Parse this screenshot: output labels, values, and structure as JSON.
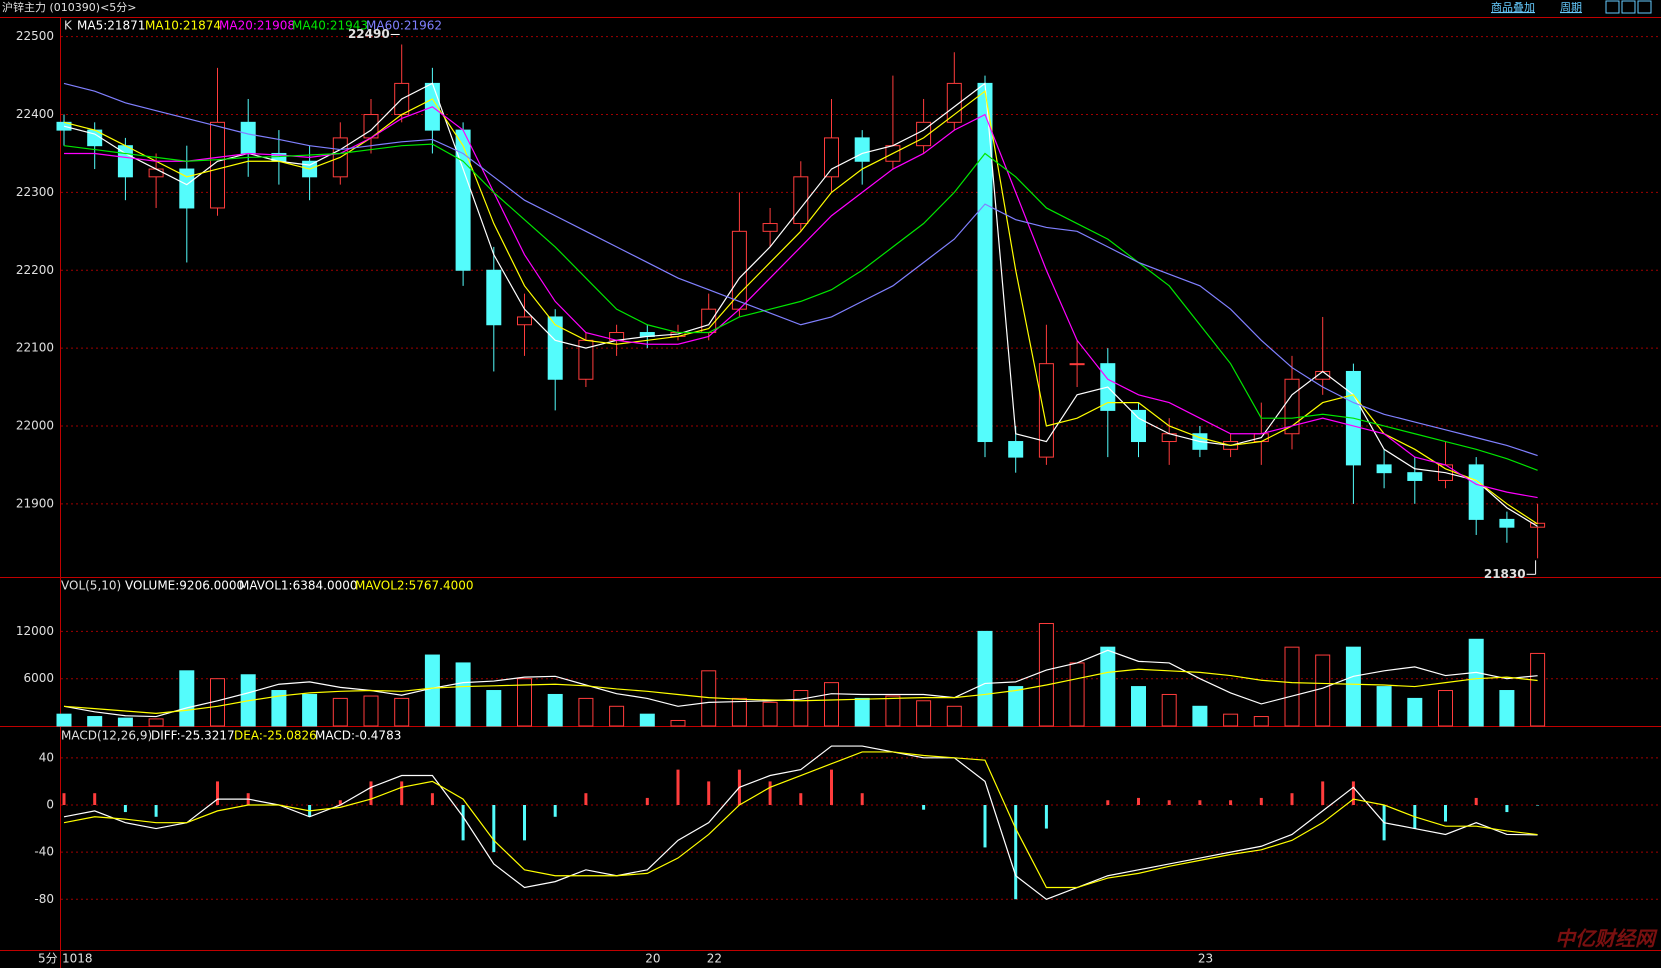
{
  "toolbar": {
    "title": "沪锌主力 (010390)<5分>",
    "buttons": [
      "商品叠加",
      "周期"
    ]
  },
  "period": "5分",
  "watermark": "中亿财经网",
  "chart_data": [
    {
      "type": "candlestick",
      "header": "K",
      "categories": [
        "1018",
        null,
        null,
        null,
        null,
        null,
        null,
        null,
        null,
        null,
        null,
        null,
        null,
        null,
        null,
        null,
        null,
        null,
        null,
        "20",
        null,
        "22",
        null,
        null,
        null,
        null,
        null,
        null,
        null,
        null,
        null,
        null,
        null,
        null,
        null,
        null,
        null,
        "23",
        null,
        null,
        null,
        null,
        null,
        null,
        null,
        null,
        null,
        null,
        null
      ],
      "open": [
        22390,
        22380,
        22360,
        22320,
        22330,
        22280,
        22390,
        22350,
        22340,
        22320,
        22370,
        22400,
        22440,
        22380,
        22200,
        22130,
        22140,
        22060,
        22110,
        22120,
        22115,
        22120,
        22150,
        22250,
        22260,
        22320,
        22370,
        22340,
        22360,
        22390,
        22440,
        21980,
        21960,
        22080,
        22080,
        22020,
        21980,
        21990,
        21970,
        21980,
        21990,
        22060,
        22070,
        21950,
        21940,
        21930,
        21950,
        21880,
        21870
      ],
      "high": [
        22400,
        22390,
        22370,
        22350,
        22360,
        22460,
        22420,
        22380,
        22360,
        22390,
        22420,
        22490,
        22460,
        22390,
        22230,
        22170,
        22150,
        22120,
        22130,
        22130,
        22130,
        22170,
        22300,
        22280,
        22340,
        22420,
        22380,
        22450,
        22420,
        22480,
        22450,
        22000,
        22130,
        22110,
        22100,
        22030,
        22010,
        22000,
        21990,
        22030,
        22090,
        22140,
        22080,
        21970,
        21960,
        21980,
        21960,
        21890,
        21900
      ],
      "low": [
        22360,
        22330,
        22290,
        22280,
        22210,
        22270,
        22320,
        22310,
        22290,
        22310,
        22350,
        22390,
        22350,
        22180,
        22070,
        22090,
        22020,
        22050,
        22090,
        22100,
        22110,
        22110,
        22140,
        22230,
        22250,
        22300,
        22310,
        22330,
        22350,
        22380,
        21960,
        21940,
        21950,
        22050,
        21960,
        21960,
        21950,
        21960,
        21960,
        21950,
        21970,
        22040,
        21900,
        21920,
        21900,
        21920,
        21860,
        21850,
        21830
      ],
      "close": [
        22380,
        22360,
        22320,
        22330,
        22280,
        22390,
        22350,
        22340,
        22320,
        22370,
        22400,
        22440,
        22380,
        22200,
        22130,
        22140,
        22060,
        22110,
        22120,
        22115,
        22120,
        22150,
        22250,
        22260,
        22320,
        22370,
        22340,
        22360,
        22390,
        22440,
        21980,
        21960,
        22080,
        22080,
        22020,
        21980,
        21990,
        21970,
        21980,
        21990,
        22060,
        22070,
        21950,
        21940,
        21930,
        21950,
        21880,
        21870,
        21875
      ],
      "up_color": "#ff3c3c",
      "down_color": "#54fcfc",
      "ylim": [
        21806,
        22524
      ],
      "yticks": [
        21900,
        22000,
        22100,
        22200,
        22300,
        22400,
        22500
      ],
      "grid": true,
      "series": [
        {
          "name": "MA5:21871",
          "color": "#ffffff",
          "values": [
            22385,
            22375,
            22350,
            22330,
            22310,
            22340,
            22350,
            22340,
            22335,
            22355,
            22380,
            22420,
            22440,
            22330,
            22220,
            22150,
            22110,
            22100,
            22110,
            22115,
            22118,
            22130,
            22190,
            22230,
            22280,
            22330,
            22350,
            22360,
            22380,
            22410,
            22440,
            21990,
            21980,
            22040,
            22050,
            22010,
            21990,
            21980,
            21975,
            21985,
            22040,
            22070,
            22040,
            21970,
            21945,
            21940,
            21930,
            21895,
            21871
          ]
        },
        {
          "name": "MA10:21874",
          "color": "#ffff00",
          "values": [
            22390,
            22380,
            22360,
            22340,
            22320,
            22330,
            22340,
            22340,
            22330,
            22345,
            22370,
            22400,
            22420,
            22360,
            22260,
            22180,
            22130,
            22110,
            22105,
            22110,
            22115,
            22125,
            22170,
            22210,
            22250,
            22300,
            22330,
            22350,
            22370,
            22400,
            22430,
            22200,
            22000,
            22010,
            22030,
            22030,
            22000,
            21985,
            21975,
            21980,
            22000,
            22030,
            22040,
            21990,
            21970,
            21945,
            21930,
            21900,
            21874
          ]
        },
        {
          "name": "MA20:21908",
          "color": "#ff00ff",
          "values": [
            22350,
            22350,
            22345,
            22340,
            22340,
            22345,
            22350,
            22348,
            22345,
            22350,
            22370,
            22395,
            22410,
            22380,
            22300,
            22220,
            22160,
            22120,
            22110,
            22105,
            22105,
            22115,
            22150,
            22190,
            22230,
            22270,
            22300,
            22330,
            22350,
            22380,
            22400,
            22300,
            22200,
            22110,
            22060,
            22040,
            22030,
            22010,
            21990,
            21990,
            22000,
            22010,
            22000,
            21990,
            21960,
            21950,
            21925,
            21915,
            21908
          ]
        },
        {
          "name": "MA40:21943",
          "color": "#00e600",
          "values": [
            22360,
            22355,
            22350,
            22345,
            22340,
            22342,
            22345,
            22346,
            22348,
            22350,
            22355,
            22360,
            22362,
            22340,
            22300,
            22265,
            22230,
            22190,
            22150,
            22130,
            22120,
            22120,
            22140,
            22150,
            22160,
            22175,
            22200,
            22230,
            22260,
            22300,
            22350,
            22320,
            22280,
            22260,
            22240,
            22210,
            22180,
            22130,
            22080,
            22010,
            22010,
            22015,
            22010,
            22000,
            21990,
            21980,
            21970,
            21958,
            21943
          ]
        },
        {
          "name": "MA60:21962",
          "color": "#8080ff",
          "values": [
            22440,
            22430,
            22415,
            22405,
            22395,
            22385,
            22375,
            22368,
            22360,
            22355,
            22360,
            22365,
            22368,
            22350,
            22320,
            22290,
            22270,
            22250,
            22230,
            22210,
            22190,
            22175,
            22160,
            22145,
            22130,
            22140,
            22160,
            22180,
            22210,
            22240,
            22285,
            22265,
            22255,
            22250,
            22230,
            22210,
            22195,
            22180,
            22150,
            22110,
            22075,
            22050,
            22030,
            22015,
            22005,
            21995,
            21985,
            21975,
            21962
          ]
        }
      ]
    },
    {
      "type": "bar",
      "title": "VOL(5,10)",
      "name": "VOLUME:9206.0000",
      "name_color": "#ffffff",
      "values": [
        1500,
        1200,
        1000,
        900,
        7000,
        6000,
        6500,
        4500,
        4000,
        3500,
        3800,
        3500,
        9000,
        8000,
        4500,
        6000,
        4000,
        3500,
        2500,
        1500,
        700,
        7000,
        3500,
        3000,
        4500,
        5500,
        3500,
        3800,
        3200,
        2500,
        12000,
        5000,
        13000,
        8000,
        10000,
        5000,
        4000,
        2500,
        1500,
        1200,
        10000,
        9000,
        10000,
        5000,
        3500,
        4500,
        11000,
        4500,
        9206
      ],
      "ylim": [
        0,
        18900
      ],
      "yticks": [
        6000,
        12000
      ],
      "grid": true,
      "series": [
        {
          "name": "MAVOL1:6384.0000",
          "color": "#ffffff",
          "values": [
            2500,
            1800,
            1300,
            1200,
            2300,
            3200,
            4200,
            5300,
            5600,
            4900,
            4500,
            3900,
            4800,
            5500,
            5700,
            6200,
            6300,
            5200,
            4100,
            3500,
            2500,
            3000,
            3100,
            3200,
            3400,
            4100,
            4000,
            4000,
            4000,
            3600,
            5400,
            5600,
            7100,
            8000,
            9600,
            8200,
            8000,
            6000,
            4200,
            2800,
            3800,
            4800,
            6300,
            7000,
            7500,
            6400,
            6800,
            6000,
            6384
          ]
        },
        {
          "name": "MAVOL2:5767.4000",
          "color": "#ffff00",
          "values": [
            2500,
            2200,
            1900,
            1600,
            2000,
            2500,
            3200,
            3800,
            4200,
            4400,
            4500,
            4400,
            4800,
            5000,
            5100,
            5200,
            5300,
            5100,
            4700,
            4400,
            4000,
            3600,
            3400,
            3300,
            3200,
            3300,
            3400,
            3500,
            3600,
            3600,
            4000,
            4500,
            5200,
            6000,
            6800,
            7200,
            7000,
            6800,
            6400,
            5800,
            5500,
            5400,
            5300,
            5200,
            5000,
            5500,
            6000,
            6200,
            5767.4
          ]
        }
      ]
    },
    {
      "type": "macd",
      "title": "MACD(12,26,9)",
      "ylim": [
        -123,
        67
      ],
      "yticks": [
        40,
        0,
        -40,
        -80
      ],
      "grid": true,
      "histogram": {
        "name": "MACD:-0.4783",
        "color": "#ffffff",
        "up_color": "#ff3c3c",
        "down_color": "#54fcfc",
        "values": [
          10,
          10,
          -6,
          -10,
          0,
          20,
          10,
          0,
          -10,
          4,
          20,
          20,
          10,
          -30,
          -40,
          -30,
          -10,
          10,
          0,
          6,
          30,
          20,
          30,
          20,
          10,
          30,
          10,
          0,
          -4,
          0,
          -36,
          -80,
          -20,
          0,
          4,
          6,
          4,
          4,
          4,
          6,
          10,
          20,
          20,
          -30,
          -20,
          -14,
          6,
          -6,
          -0.4783
        ]
      },
      "series": [
        {
          "name": "DIFF:-25.3217",
          "color": "#ffffff",
          "values": [
            -10,
            -5,
            -15,
            -20,
            -15,
            5,
            5,
            0,
            -10,
            0,
            15,
            25,
            25,
            -10,
            -50,
            -70,
            -65,
            -55,
            -60,
            -55,
            -30,
            -15,
            15,
            25,
            30,
            50,
            50,
            45,
            40,
            40,
            20,
            -60,
            -80,
            -70,
            -60,
            -55,
            -50,
            -45,
            -40,
            -35,
            -25,
            -5,
            15,
            -15,
            -20,
            -25,
            -15,
            -25,
            -25.3217
          ]
        },
        {
          "name": "DEA:-25.0826",
          "color": "#ffff00",
          "values": [
            -15,
            -10,
            -12,
            -15,
            -15,
            -5,
            0,
            0,
            -5,
            -2,
            5,
            15,
            20,
            5,
            -30,
            -55,
            -60,
            -60,
            -60,
            -58,
            -45,
            -25,
            0,
            15,
            25,
            35,
            45,
            45,
            42,
            40,
            38,
            -20,
            -70,
            -70,
            -62,
            -58,
            -52,
            -47,
            -42,
            -38,
            -30,
            -15,
            5,
            0,
            -10,
            -18,
            -18,
            -22,
            -25.0826
          ]
        }
      ]
    }
  ]
}
